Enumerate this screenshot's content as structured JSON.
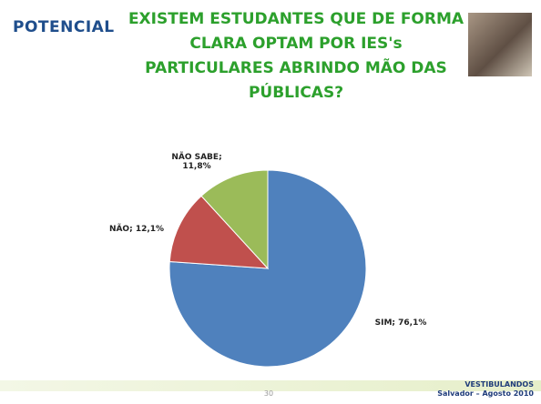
{
  "logo": "POTENCIAL",
  "chart_data": {
    "type": "pie",
    "title": "EXISTEM ESTUDANTES QUE DE FORMA CLARA OPTAM POR IES's PARTICULARES ABRINDO MÃO DAS PÚBLICAS?",
    "values": [
      76.1,
      12.1,
      11.8
    ],
    "value_labels": [
      "SIM; 76,1%",
      "NÃO; 12,1%",
      "NÃO SABE; 11,8%"
    ],
    "colors": [
      "#4f81bd",
      "#c0504d",
      "#9bbb59"
    ]
  },
  "footer": {
    "page": "30",
    "line1": "VESTIBULANDOS",
    "line2": "Salvador – Agosto 2010"
  }
}
